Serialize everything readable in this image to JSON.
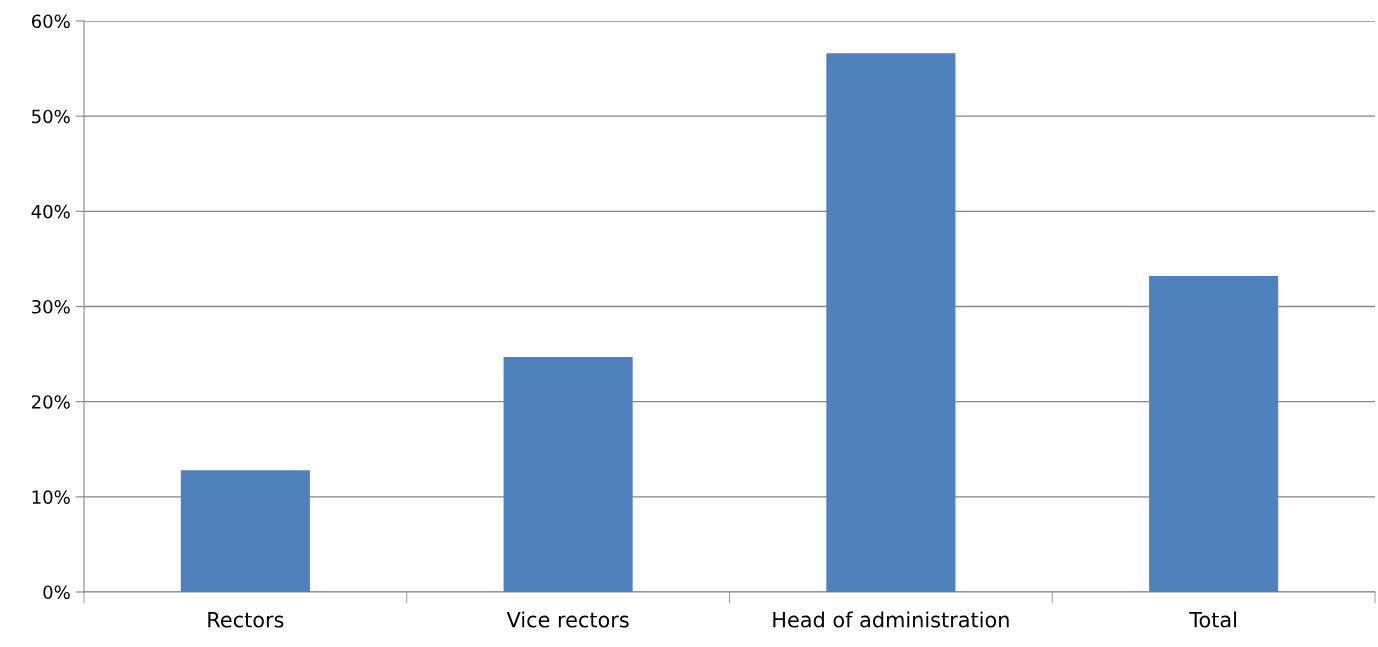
{
  "chart_data": {
    "type": "bar",
    "categories": [
      "Rectors",
      "Vice rectors",
      "Head of administration",
      "Total"
    ],
    "values": [
      12.8,
      24.7,
      56.6,
      33.2
    ],
    "color": "#4f81bd",
    "ylim": [
      0,
      60
    ],
    "yticks": [
      {
        "value": 0,
        "label": "0%"
      },
      {
        "value": 10,
        "label": "10%"
      },
      {
        "value": 20,
        "label": "20%"
      },
      {
        "value": 30,
        "label": "30%"
      },
      {
        "value": 40,
        "label": "40%"
      },
      {
        "value": 50,
        "label": "50%"
      },
      {
        "value": 60,
        "label": "60%"
      }
    ],
    "grid": "y",
    "legend": false
  }
}
